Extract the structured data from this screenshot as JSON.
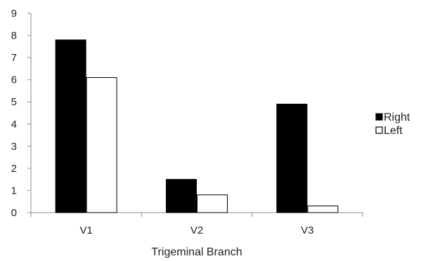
{
  "chart_data": {
    "type": "bar",
    "categories": [
      "V1",
      "V2",
      "V3"
    ],
    "series": [
      {
        "name": "Right",
        "values": [
          7.8,
          1.5,
          4.9
        ],
        "fill": "#000000",
        "stroke": "#000000"
      },
      {
        "name": "Left",
        "values": [
          6.1,
          0.8,
          0.3
        ],
        "fill": "#ffffff",
        "stroke": "#000000"
      }
    ],
    "title": "",
    "xlabel": "Trigeminal Branch",
    "ylabel": "",
    "ylim": [
      0,
      9
    ],
    "yticks": [
      0,
      1,
      2,
      3,
      4,
      5,
      6,
      7,
      8,
      9
    ],
    "grid": false,
    "legend_position": "right"
  }
}
